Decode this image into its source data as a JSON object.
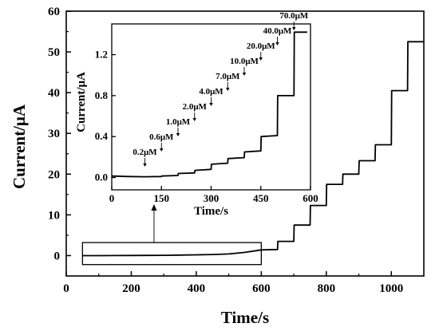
{
  "chart_data": [
    {
      "type": "line",
      "title": "",
      "xlabel": "Time/s",
      "ylabel": "Current/μA",
      "xlim": [
        0,
        1100
      ],
      "ylim": [
        -5,
        60
      ],
      "xticks": [
        0,
        200,
        400,
        600,
        800,
        1000
      ],
      "yticks": [
        0,
        10,
        20,
        30,
        40,
        50,
        60
      ],
      "grid": false,
      "series": [
        {
          "color": "#000000",
          "x": [
            50,
            100,
            150,
            200,
            250,
            300,
            350,
            400,
            450,
            500,
            550,
            600,
            650,
            651,
            700,
            701,
            750,
            751,
            800,
            801,
            850,
            851,
            900,
            901,
            950,
            951,
            1000,
            1001,
            1050,
            1051,
            1100
          ],
          "y": [
            0.0,
            0.0,
            0.01,
            0.03,
            0.05,
            0.08,
            0.13,
            0.19,
            0.27,
            0.4,
            0.8,
            1.4,
            1.5,
            3.5,
            3.5,
            7.5,
            7.5,
            12.3,
            12.3,
            17.5,
            17.5,
            20.0,
            20.0,
            23.3,
            23.3,
            27.2,
            27.2,
            40.5,
            40.5,
            52.5,
            52.5
          ]
        }
      ]
    },
    {
      "type": "line",
      "title": "",
      "xlabel": "Time/s",
      "ylabel": "Current/μA",
      "xlim": [
        0,
        600
      ],
      "ylim": [
        -0.12,
        1.5
      ],
      "xticks": [
        0,
        150,
        300,
        450,
        600
      ],
      "yticks": [
        0.0,
        0.4,
        0.8,
        1.2
      ],
      "grid": false,
      "series": [
        {
          "color": "#000000",
          "x": [
            0,
            50,
            100,
            150,
            151,
            200,
            201,
            250,
            251,
            300,
            301,
            350,
            351,
            400,
            401,
            450,
            451,
            500,
            501,
            550,
            551,
            590
          ],
          "y": [
            0.015,
            0.01,
            0.008,
            0.01,
            0.015,
            0.02,
            0.04,
            0.045,
            0.07,
            0.08,
            0.13,
            0.14,
            0.185,
            0.195,
            0.25,
            0.26,
            0.4,
            0.41,
            0.8,
            0.8,
            1.42,
            1.42
          ]
        }
      ],
      "annotations": [
        {
          "label": "0.2μM",
          "x": 100
        },
        {
          "label": "0.6μM",
          "x": 150
        },
        {
          "label": "1.0μM",
          "x": 200
        },
        {
          "label": "2.0μM",
          "x": 250
        },
        {
          "label": "4.0μM",
          "x": 300
        },
        {
          "label": "7.0μM",
          "x": 350
        },
        {
          "label": "10.0μM",
          "x": 400
        },
        {
          "label": "20.0μM",
          "x": 450
        },
        {
          "label": "40.0μM",
          "x": 500
        },
        {
          "label": "70.0μM",
          "x": 550
        }
      ]
    }
  ]
}
